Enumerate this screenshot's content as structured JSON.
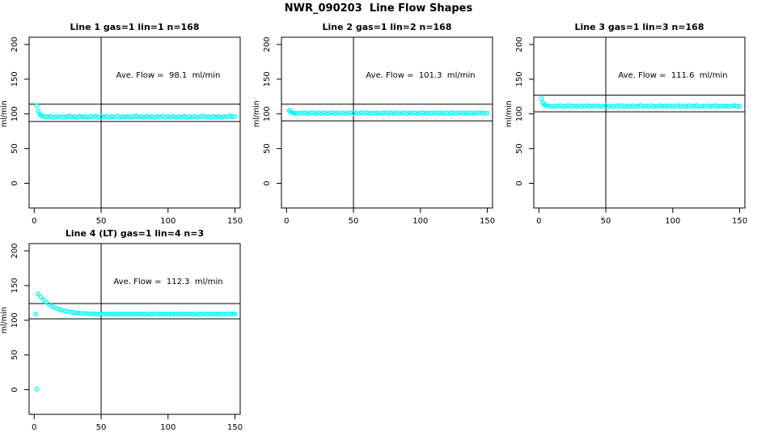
{
  "title": "NWR_090203  Line Flow Shapes",
  "background_color": "#ffffff",
  "chart_data": [
    {
      "type": "scatter",
      "title": "Line 1 gas=1 lin=1 n=168",
      "annotation": "Ave. Flow =  98.1  ml/min",
      "ave_flow": 98.1,
      "gas": 1,
      "lin": 1,
      "n": 168,
      "ylabel": "ml/min",
      "x_ticks": [
        0,
        50,
        100,
        150
      ],
      "y_ticks": [
        0,
        50,
        100,
        150,
        200
      ],
      "xlim": [
        0,
        155
      ],
      "ylim": [
        -35,
        210
      ],
      "grid": false,
      "marker": "circle-open",
      "marker_color": "#00ffff",
      "vline_x": 50,
      "hlines_y": [
        114,
        89
      ],
      "points": [
        [
          2,
          112
        ],
        [
          3,
          104
        ],
        [
          4,
          100
        ],
        [
          5,
          98
        ],
        [
          6,
          97
        ],
        [
          8,
          96
        ],
        [
          10,
          95.5
        ],
        [
          12,
          96.5
        ],
        [
          14,
          95
        ],
        [
          16,
          96
        ],
        [
          18,
          95.5
        ],
        [
          20,
          96.5
        ],
        [
          22,
          95
        ],
        [
          24,
          96
        ],
        [
          26,
          97
        ],
        [
          28,
          95.5
        ],
        [
          30,
          96
        ],
        [
          32,
          95
        ],
        [
          34,
          96.5
        ],
        [
          36,
          95.5
        ],
        [
          38,
          96
        ],
        [
          40,
          95
        ],
        [
          42,
          96.5
        ],
        [
          44,
          95.5
        ],
        [
          46,
          97
        ],
        [
          48,
          95
        ],
        [
          50,
          96
        ],
        [
          52,
          95.5
        ],
        [
          54,
          96.5
        ],
        [
          56,
          95
        ],
        [
          58,
          96
        ],
        [
          60,
          95.5
        ],
        [
          62,
          97
        ],
        [
          64,
          95
        ],
        [
          66,
          96
        ],
        [
          68,
          95.5
        ],
        [
          70,
          96.5
        ],
        [
          72,
          95
        ],
        [
          74,
          96
        ],
        [
          76,
          97
        ],
        [
          78,
          95.5
        ],
        [
          80,
          96
        ],
        [
          82,
          95
        ],
        [
          84,
          96.5
        ],
        [
          86,
          95.5
        ],
        [
          88,
          96
        ],
        [
          90,
          95
        ],
        [
          92,
          96.5
        ],
        [
          94,
          95.5
        ],
        [
          96,
          97
        ],
        [
          98,
          95
        ],
        [
          100,
          96
        ],
        [
          102,
          95.5
        ],
        [
          104,
          96.5
        ],
        [
          106,
          95
        ],
        [
          108,
          96
        ],
        [
          110,
          95.5
        ],
        [
          112,
          97
        ],
        [
          114,
          95
        ],
        [
          116,
          96
        ],
        [
          118,
          95.5
        ],
        [
          120,
          96.5
        ],
        [
          122,
          95
        ],
        [
          124,
          96
        ],
        [
          126,
          97
        ],
        [
          128,
          95.5
        ],
        [
          130,
          96
        ],
        [
          132,
          95
        ],
        [
          134,
          96.5
        ],
        [
          136,
          95.5
        ],
        [
          138,
          96
        ],
        [
          140,
          95
        ],
        [
          142,
          96.5
        ],
        [
          144,
          95.5
        ],
        [
          146,
          97
        ],
        [
          148,
          96
        ],
        [
          150,
          96.5
        ]
      ]
    },
    {
      "type": "scatter",
      "title": "Line 2 gas=1 lin=2 n=168",
      "annotation": "Ave. Flow =  101.3  ml/min",
      "ave_flow": 101.3,
      "gas": 1,
      "lin": 2,
      "n": 168,
      "ylabel": "ml/min",
      "x_ticks": [
        0,
        50,
        100,
        150
      ],
      "y_ticks": [
        0,
        50,
        100,
        150,
        200
      ],
      "xlim": [
        0,
        155
      ],
      "ylim": [
        -35,
        210
      ],
      "grid": false,
      "marker": "circle-open",
      "marker_color": "#00ffff",
      "vline_x": 50,
      "hlines_y": [
        114,
        90
      ],
      "points": [
        [
          2,
          105
        ],
        [
          3,
          103
        ],
        [
          4,
          102
        ],
        [
          5,
          101.5
        ],
        [
          6,
          101
        ],
        [
          8,
          100.5
        ],
        [
          10,
          101.5
        ],
        [
          12,
          100.8
        ],
        [
          14,
          101.8
        ],
        [
          16,
          100.5
        ],
        [
          18,
          101.2
        ],
        [
          20,
          102
        ],
        [
          22,
          100.6
        ],
        [
          24,
          101.5
        ],
        [
          26,
          100.9
        ],
        [
          28,
          101.8
        ],
        [
          30,
          100.5
        ],
        [
          32,
          101.3
        ],
        [
          34,
          102
        ],
        [
          36,
          100.7
        ],
        [
          38,
          101.5
        ],
        [
          40,
          100.9
        ],
        [
          42,
          101.9
        ],
        [
          44,
          100.5
        ],
        [
          46,
          101.2
        ],
        [
          48,
          102
        ],
        [
          50,
          100.8
        ],
        [
          52,
          101.5
        ],
        [
          54,
          100.6
        ],
        [
          56,
          101.8
        ],
        [
          58,
          101
        ],
        [
          60,
          102
        ],
        [
          62,
          100.5
        ],
        [
          64,
          101.4
        ],
        [
          66,
          100.9
        ],
        [
          68,
          101.7
        ],
        [
          70,
          100.6
        ],
        [
          72,
          101.3
        ],
        [
          74,
          102
        ],
        [
          76,
          100.8
        ],
        [
          78,
          101.5
        ],
        [
          80,
          100.5
        ],
        [
          82,
          101.9
        ],
        [
          84,
          100.7
        ],
        [
          86,
          101.2
        ],
        [
          88,
          102
        ],
        [
          90,
          100.6
        ],
        [
          92,
          101.5
        ],
        [
          94,
          100.9
        ],
        [
          96,
          101.8
        ],
        [
          98,
          100.5
        ],
        [
          100,
          101.3
        ],
        [
          102,
          102
        ],
        [
          104,
          100.8
        ],
        [
          106,
          101.5
        ],
        [
          108,
          100.6
        ],
        [
          110,
          101.9
        ],
        [
          112,
          100.9
        ],
        [
          114,
          101.4
        ],
        [
          116,
          102
        ],
        [
          118,
          100.5
        ],
        [
          120,
          101.3
        ],
        [
          122,
          100.8
        ],
        [
          124,
          101.8
        ],
        [
          126,
          100.6
        ],
        [
          128,
          101.5
        ],
        [
          130,
          102
        ],
        [
          132,
          100.7
        ],
        [
          134,
          101.2
        ],
        [
          136,
          100.9
        ],
        [
          138,
          101.7
        ],
        [
          140,
          100.5
        ],
        [
          142,
          101.4
        ],
        [
          144,
          102
        ],
        [
          146,
          100.8
        ],
        [
          148,
          101.5
        ],
        [
          150,
          101
        ]
      ]
    },
    {
      "type": "scatter",
      "title": "Line 3 gas=1 lin=3 n=168",
      "annotation": "Ave. Flow =  111.6  ml/min",
      "ave_flow": 111.6,
      "gas": 1,
      "lin": 3,
      "n": 168,
      "ylabel": "ml/min",
      "x_ticks": [
        0,
        50,
        100,
        150
      ],
      "y_ticks": [
        0,
        50,
        100,
        150,
        200
      ],
      "xlim": [
        0,
        155
      ],
      "ylim": [
        -35,
        210
      ],
      "grid": false,
      "marker": "circle-open",
      "marker_color": "#00ffff",
      "vline_x": 50,
      "hlines_y": [
        127,
        103
      ],
      "points": [
        [
          2,
          122
        ],
        [
          3,
          116
        ],
        [
          4,
          113.5
        ],
        [
          5,
          112.5
        ],
        [
          6,
          112
        ],
        [
          8,
          111
        ],
        [
          10,
          110.5
        ],
        [
          12,
          111.5
        ],
        [
          14,
          110.8
        ],
        [
          16,
          111.8
        ],
        [
          18,
          110.5
        ],
        [
          20,
          111.2
        ],
        [
          22,
          112
        ],
        [
          24,
          110.6
        ],
        [
          26,
          111.5
        ],
        [
          28,
          110.9
        ],
        [
          30,
          111.8
        ],
        [
          32,
          110.5
        ],
        [
          34,
          111.3
        ],
        [
          36,
          112
        ],
        [
          38,
          110.7
        ],
        [
          40,
          111.5
        ],
        [
          42,
          110.9
        ],
        [
          44,
          111.9
        ],
        [
          46,
          110.5
        ],
        [
          48,
          111.2
        ],
        [
          50,
          112
        ],
        [
          52,
          110.8
        ],
        [
          54,
          111.5
        ],
        [
          56,
          110.6
        ],
        [
          58,
          111.8
        ],
        [
          60,
          111
        ],
        [
          62,
          112
        ],
        [
          64,
          110.5
        ],
        [
          66,
          111.4
        ],
        [
          68,
          110.9
        ],
        [
          70,
          111.7
        ],
        [
          72,
          110.6
        ],
        [
          74,
          111.3
        ],
        [
          76,
          112
        ],
        [
          78,
          110.8
        ],
        [
          80,
          111.5
        ],
        [
          82,
          110.5
        ],
        [
          84,
          111.9
        ],
        [
          86,
          110.7
        ],
        [
          88,
          111.2
        ],
        [
          90,
          112
        ],
        [
          92,
          110.6
        ],
        [
          94,
          111.5
        ],
        [
          96,
          110.9
        ],
        [
          98,
          111.8
        ],
        [
          100,
          110.5
        ],
        [
          102,
          111.3
        ],
        [
          104,
          112
        ],
        [
          106,
          110.8
        ],
        [
          108,
          111.5
        ],
        [
          110,
          110.6
        ],
        [
          112,
          111.9
        ],
        [
          114,
          110.9
        ],
        [
          116,
          111.4
        ],
        [
          118,
          112
        ],
        [
          120,
          110.5
        ],
        [
          122,
          111.3
        ],
        [
          124,
          110.8
        ],
        [
          126,
          111.8
        ],
        [
          128,
          110.6
        ],
        [
          130,
          111.5
        ],
        [
          132,
          112
        ],
        [
          134,
          110.7
        ],
        [
          136,
          111.2
        ],
        [
          138,
          110.9
        ],
        [
          140,
          111.7
        ],
        [
          142,
          110.5
        ],
        [
          144,
          111.4
        ],
        [
          146,
          112
        ],
        [
          148,
          110.8
        ],
        [
          150,
          111.2
        ]
      ]
    },
    {
      "type": "scatter",
      "title": "Line 4 (LT) gas=1 lin=4 n=3",
      "annotation": "Ave. Flow =  112.3  ml/min",
      "ave_flow": 112.3,
      "gas": 1,
      "lin": 4,
      "n": 3,
      "ylabel": "ml/min",
      "x_ticks": [
        0,
        50,
        100,
        150
      ],
      "y_ticks": [
        0,
        50,
        100,
        150,
        200
      ],
      "xlim": [
        0,
        155
      ],
      "ylim": [
        -35,
        210
      ],
      "grid": false,
      "marker": "circle-open",
      "marker_color": "#00ffff",
      "vline_x": 50,
      "hlines_y": [
        124,
        102
      ],
      "points": [
        [
          1,
          109
        ],
        [
          2,
          1
        ],
        [
          3,
          138
        ],
        [
          5,
          133.5
        ],
        [
          7,
          129.5
        ],
        [
          9,
          126
        ],
        [
          11,
          123
        ],
        [
          13,
          120.5
        ],
        [
          15,
          118.5
        ],
        [
          17,
          117
        ],
        [
          19,
          115.5
        ],
        [
          21,
          114.3
        ],
        [
          23,
          113.3
        ],
        [
          25,
          112.5
        ],
        [
          27,
          111.8
        ],
        [
          29,
          111.2
        ],
        [
          31,
          110.8
        ],
        [
          33,
          110.4
        ],
        [
          35,
          110.1
        ],
        [
          37,
          109.9
        ],
        [
          39,
          109.6
        ],
        [
          41,
          109.4
        ],
        [
          43,
          109.3
        ],
        [
          45,
          109.1
        ],
        [
          47,
          109
        ],
        [
          49,
          108.9
        ],
        [
          51,
          108.8
        ],
        [
          53,
          109.2
        ],
        [
          55,
          108.6
        ],
        [
          57,
          109
        ],
        [
          59,
          109.4
        ],
        [
          61,
          108.5
        ],
        [
          63,
          109.1
        ],
        [
          65,
          108.8
        ],
        [
          67,
          109.3
        ],
        [
          69,
          108.7
        ],
        [
          71,
          109
        ],
        [
          73,
          109.4
        ],
        [
          75,
          108.6
        ],
        [
          77,
          109.2
        ],
        [
          79,
          108.8
        ],
        [
          81,
          109.1
        ],
        [
          83,
          108.5
        ],
        [
          85,
          109.3
        ],
        [
          87,
          108.7
        ],
        [
          89,
          109
        ],
        [
          91,
          109.4
        ],
        [
          93,
          108.6
        ],
        [
          95,
          109.2
        ],
        [
          97,
          108.8
        ],
        [
          99,
          109.1
        ],
        [
          101,
          108.5
        ],
        [
          103,
          109.3
        ],
        [
          105,
          108.7
        ],
        [
          107,
          109
        ],
        [
          109,
          109.4
        ],
        [
          111,
          108.6
        ],
        [
          113,
          109.2
        ],
        [
          115,
          108.8
        ],
        [
          117,
          109.1
        ],
        [
          119,
          108.5
        ],
        [
          121,
          109.3
        ],
        [
          123,
          108.7
        ],
        [
          125,
          109
        ],
        [
          127,
          109.4
        ],
        [
          129,
          108.6
        ],
        [
          131,
          109.2
        ],
        [
          133,
          108.8
        ],
        [
          135,
          109.1
        ],
        [
          137,
          108.5
        ],
        [
          139,
          109.3
        ],
        [
          141,
          108.7
        ],
        [
          143,
          109
        ],
        [
          145,
          109.4
        ],
        [
          147,
          108.6
        ],
        [
          149,
          109.2
        ],
        [
          150,
          109
        ]
      ]
    }
  ]
}
